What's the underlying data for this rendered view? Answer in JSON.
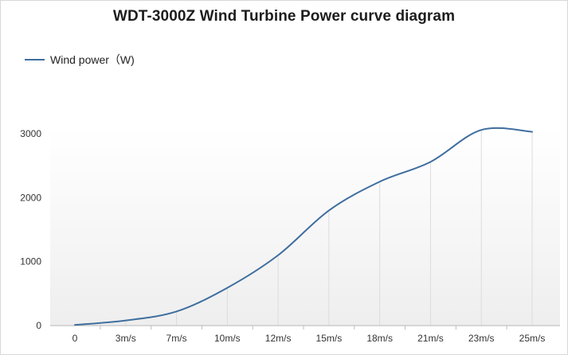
{
  "chart_data": {
    "type": "line",
    "title": "WDT-3000Z Wind Turbine Power curve diagram",
    "xlabel": "",
    "ylabel": "",
    "categories": [
      "0",
      "3m/s",
      "7m/s",
      "10m/s",
      "12m/s",
      "15m/s",
      "18m/s",
      "21m/s",
      "23m/s",
      "25m/s"
    ],
    "series": [
      {
        "name": "Wind power（W)",
        "values": [
          10,
          80,
          220,
          590,
          1100,
          1800,
          2250,
          2560,
          3060,
          3030
        ]
      }
    ],
    "ylim": [
      0,
      3000
    ],
    "yticks": [
      "0",
      "1000",
      "2000",
      "3000"
    ],
    "legend_position": "top-left",
    "grid": "vertical",
    "colors": {
      "line": "#3f6e9f",
      "grid": "#dcdcdc",
      "axis": "#bdbdbd"
    }
  }
}
